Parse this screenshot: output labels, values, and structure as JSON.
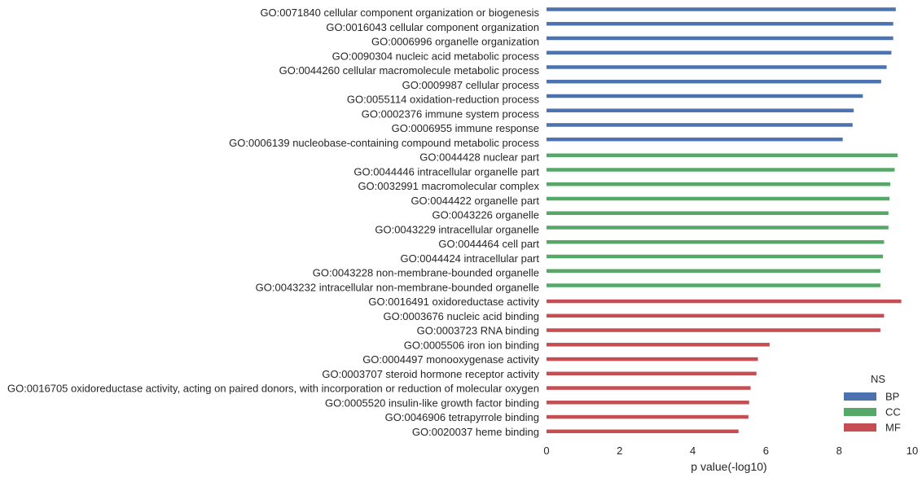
{
  "chart_data": {
    "type": "bar",
    "orientation": "horizontal",
    "title": "",
    "xlabel": "p value(-log10)",
    "ylabel": "",
    "xlim": [
      0,
      10
    ],
    "xticks": [
      0,
      2,
      4,
      6,
      8,
      10
    ],
    "grid": false,
    "legend": {
      "title": "NS",
      "placement": "bottom-right",
      "entries": [
        "BP",
        "CC",
        "MF"
      ]
    },
    "colors": {
      "BP": "#4c72b0",
      "CC": "#55a868",
      "MF": "#c44e52"
    },
    "categories": [
      "GO:0071840 cellular component organization or biogenesis",
      "GO:0016043 cellular component organization",
      "GO:0006996 organelle organization",
      "GO:0090304 nucleic acid metabolic process",
      "GO:0044260 cellular macromolecule metabolic process",
      "GO:0009987 cellular process",
      "GO:0055114 oxidation-reduction process",
      "GO:0002376 immune system process",
      "GO:0006955 immune response",
      "GO:0006139 nucleobase-containing compound metabolic process",
      "GO:0044428 nuclear part",
      "GO:0044446 intracellular organelle part",
      "GO:0032991 macromolecular complex",
      "GO:0044422 organelle part",
      "GO:0043226 organelle",
      "GO:0043229 intracellular organelle",
      "GO:0044464 cell part",
      "GO:0044424 intracellular part",
      "GO:0043228 non-membrane-bounded organelle",
      "GO:0043232 intracellular non-membrane-bounded organelle",
      "GO:0016491 oxidoreductase activity",
      "GO:0003676 nucleic acid binding",
      "GO:0003723 RNA binding",
      "GO:0005506 iron ion binding",
      "GO:0004497 monooxygenase activity",
      "GO:0003707 steroid hormone receptor activity",
      "GO:0016705 oxidoreductase activity, acting on paired donors, with incorporation or reduction of molecular oxygen",
      "GO:0005520 insulin-like growth factor binding",
      "GO:0046906 tetrapyrrole binding",
      "GO:0020037 heme binding"
    ],
    "ns": [
      "BP",
      "BP",
      "BP",
      "BP",
      "BP",
      "BP",
      "BP",
      "BP",
      "BP",
      "BP",
      "CC",
      "CC",
      "CC",
      "CC",
      "CC",
      "CC",
      "CC",
      "CC",
      "CC",
      "CC",
      "MF",
      "MF",
      "MF",
      "MF",
      "MF",
      "MF",
      "MF",
      "MF",
      "MF",
      "MF"
    ],
    "values": [
      9.55,
      9.48,
      9.48,
      9.43,
      9.3,
      9.15,
      8.65,
      8.4,
      8.37,
      8.1,
      9.6,
      9.52,
      9.4,
      9.38,
      9.35,
      9.35,
      9.23,
      9.2,
      9.13,
      9.13,
      9.7,
      9.23,
      9.13,
      6.1,
      5.78,
      5.74,
      5.58,
      5.54,
      5.52,
      5.25
    ]
  }
}
